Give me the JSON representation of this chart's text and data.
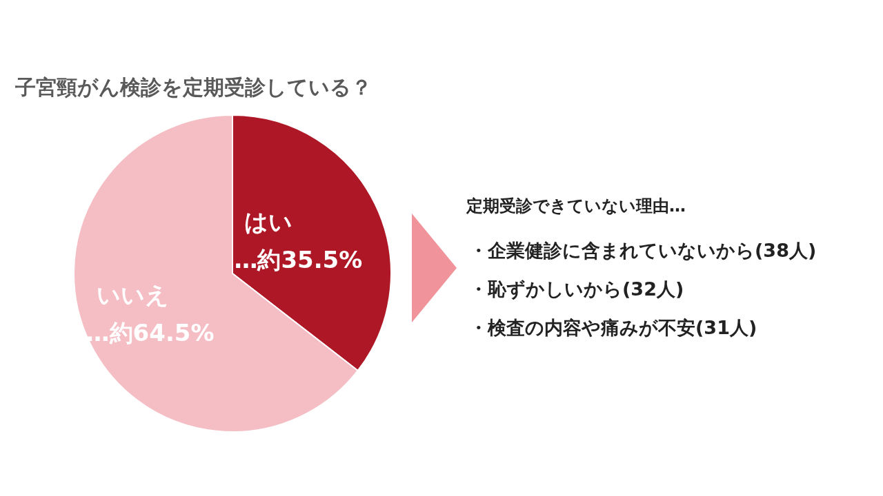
{
  "chart_data": {
    "type": "pie",
    "title": "子宮頸がん検診を定期受診している？",
    "categories": [
      "はい",
      "いいえ"
    ],
    "values": [
      35.5,
      64.5
    ],
    "colors": [
      "#ae1726",
      "#f4bec4"
    ],
    "value_labels": [
      "…約35.5%",
      "…約64.5%"
    ],
    "annotations": [
      "定期受診できていない理由…",
      "・企業健診に含まれていないから(38人)",
      "・恥ずかしいから(32人)",
      "・検査の内容や痛みが不安(31人)"
    ]
  }
}
